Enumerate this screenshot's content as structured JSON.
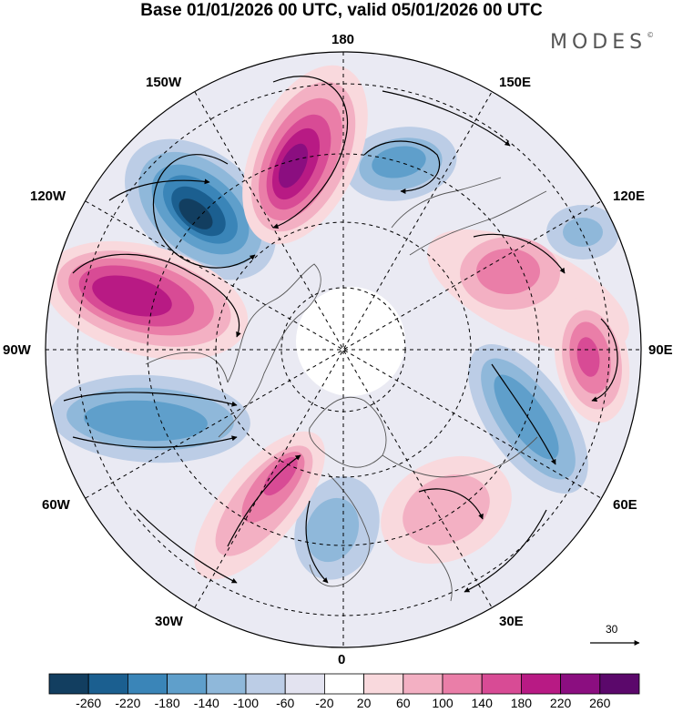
{
  "title": "Base 01/01/2026 00 UTC, valid 05/01/2026 00 UTC",
  "brand": "MODES",
  "brand_mark": "©",
  "map": {
    "projection": "north polar stereographic",
    "longitude_labels": [
      "180",
      "150E",
      "120E",
      "90E",
      "60E",
      "30E",
      "0",
      "30W",
      "60W",
      "90W",
      "120W",
      "150W"
    ],
    "wind_reference_value": "30"
  },
  "colorbar": {
    "ticks": [
      "-260",
      "-220",
      "-180",
      "-140",
      "-100",
      "-60",
      "-20",
      "20",
      "60",
      "100",
      "140",
      "180",
      "220",
      "260"
    ],
    "colors": [
      "#123e60",
      "#1b5f90",
      "#3a85b8",
      "#5f9fcb",
      "#8fb8da",
      "#bccde6",
      "#e3e3f0",
      "#ffffff",
      "#f9d9dd",
      "#f3b0c3",
      "#ea7ea8",
      "#d84b95",
      "#b81a84",
      "#8b0e80",
      "#5b086b"
    ]
  },
  "colors": {
    "background": "#ffffff",
    "land_fill": "#eeeeee",
    "grid_line": "#000000"
  }
}
